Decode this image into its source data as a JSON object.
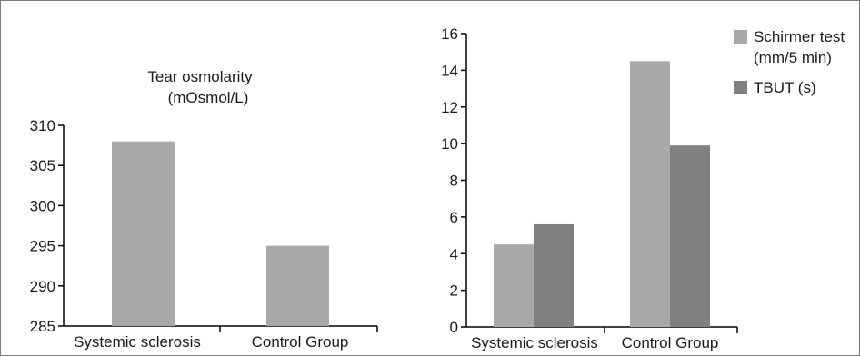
{
  "chart_data": [
    {
      "type": "bar",
      "title": "Tear osmolarity",
      "subtitle": "(mOsmol/L)",
      "categories": [
        "Systemic sclerosis",
        "Control Group"
      ],
      "series": [
        {
          "values": [
            308,
            295
          ],
          "color": "#a9a9ab"
        }
      ],
      "ylim": [
        285,
        310
      ],
      "yticks": [
        285,
        290,
        295,
        300,
        305,
        310
      ],
      "grid": false,
      "legend": "none"
    },
    {
      "type": "bar",
      "categories": [
        "Systemic sclerosis",
        "Control Group"
      ],
      "series": [
        {
          "name_line1": "Schirmer test",
          "name_line2": "(mm/5 min)",
          "values": [
            4.5,
            14.5
          ],
          "color": "#a9a9ab"
        },
        {
          "name": "TBUT (s)",
          "values": [
            5.6,
            9.9
          ],
          "color": "#808083"
        }
      ],
      "ylim": [
        0,
        16
      ],
      "yticks": [
        0,
        2,
        4,
        6,
        8,
        10,
        12,
        14,
        16
      ],
      "grid": false,
      "legend": "top-right"
    }
  ]
}
